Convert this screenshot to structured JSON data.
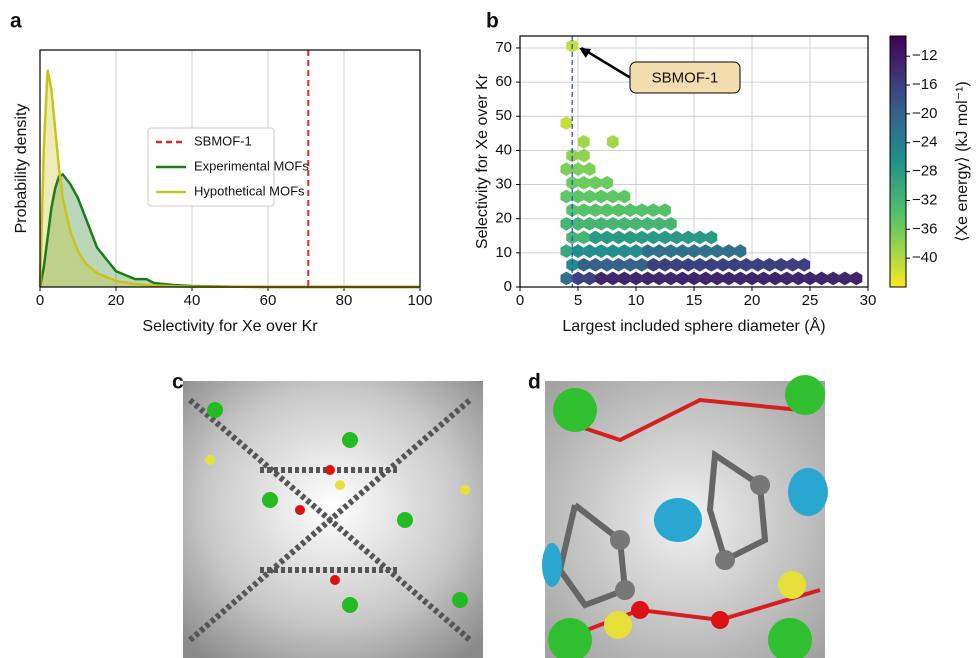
{
  "chart_data": [
    {
      "label": "a",
      "type": "line",
      "xlabel": "Selectivity for Xe over Kr",
      "ylabel": "Probability density",
      "x": [
        0,
        1,
        2,
        3,
        4,
        5,
        6,
        8,
        10,
        12,
        15,
        20,
        25,
        28,
        30,
        35,
        40,
        50,
        60,
        80,
        100
      ],
      "series": [
        {
          "name": "Experimental MOFs",
          "color": "#1c7c1c",
          "values": [
            0,
            0.01,
            0.025,
            0.04,
            0.05,
            0.056,
            0.057,
            0.052,
            0.045,
            0.035,
            0.02,
            0.008,
            0.004,
            0.004,
            0.002,
            0.001,
            0.0005,
            0.0002,
            0,
            0,
            0
          ]
        },
        {
          "name": "Hypothetical MOFs",
          "color": "#c8c41a",
          "values": [
            0,
            0.07,
            0.11,
            0.1,
            0.08,
            0.06,
            0.045,
            0.028,
            0.018,
            0.012,
            0.007,
            0.003,
            0.0015,
            0.001,
            0.0008,
            0.0004,
            0.0002,
            0.0001,
            0,
            0,
            0
          ]
        }
      ],
      "reference_line": {
        "name": "SBMOF-1",
        "x": 70.6,
        "color": "#e8251c"
      },
      "xlim": [
        0,
        100
      ],
      "ylim": [
        0,
        0.12
      ],
      "xticks": [
        0,
        20,
        40,
        60,
        80,
        100
      ],
      "grid": "x",
      "legend": "center"
    },
    {
      "label": "b",
      "type": "hexbin",
      "xlabel": "Largest included sphere diameter (Å)",
      "ylabel": "Selectivity for Xe over Kr",
      "x": [
        4,
        5,
        6,
        7,
        8,
        9,
        10,
        11,
        12,
        13,
        14,
        15,
        16,
        17,
        18,
        19,
        20,
        21,
        22,
        23,
        24,
        25,
        26,
        27,
        28,
        29,
        4.5,
        5.5,
        6.5,
        7.5,
        8.5,
        9.5,
        10.5,
        11.5,
        12.5,
        13.5,
        14.5,
        15.5,
        16.5,
        17.5,
        18.5,
        19.5,
        20.5,
        21.5,
        22.5,
        23.5,
        24.5,
        4,
        5,
        6,
        7,
        8,
        9,
        10,
        11,
        12,
        13,
        14,
        15,
        16,
        17,
        18,
        19,
        4.5,
        5.5,
        6.5,
        7.5,
        8.5,
        9.5,
        10.5,
        11.5,
        12.5,
        13.5,
        14.5,
        15.5,
        16.5,
        4,
        5,
        6,
        7,
        8,
        9,
        10,
        11,
        12,
        13,
        4.5,
        5.5,
        6.5,
        7.5,
        8.5,
        9.5,
        10.5,
        11.5,
        12.5,
        4,
        5,
        6,
        7,
        8,
        9,
        4.5,
        5.5,
        6.5,
        7.5,
        4,
        5,
        6,
        4.5,
        5.5,
        5.5,
        8,
        4,
        4.5
      ],
      "y": [
        2.5,
        2.5,
        2.5,
        2.5,
        2.5,
        2.5,
        2.5,
        2.5,
        2.5,
        2.5,
        2.5,
        2.5,
        2.5,
        2.5,
        2.5,
        2.5,
        2.5,
        2.5,
        2.5,
        2.5,
        2.5,
        2.5,
        2.5,
        2.5,
        2.5,
        2.5,
        6.5,
        6.5,
        6.5,
        6.5,
        6.5,
        6.5,
        6.5,
        6.5,
        6.5,
        6.5,
        6.5,
        6.5,
        6.5,
        6.5,
        6.5,
        6.5,
        6.5,
        6.5,
        6.5,
        6.5,
        6.5,
        10.5,
        10.5,
        10.5,
        10.5,
        10.5,
        10.5,
        10.5,
        10.5,
        10.5,
        10.5,
        10.5,
        10.5,
        10.5,
        10.5,
        10.5,
        10.5,
        14.5,
        14.5,
        14.5,
        14.5,
        14.5,
        14.5,
        14.5,
        14.5,
        14.5,
        14.5,
        14.5,
        14.5,
        14.5,
        18.5,
        18.5,
        18.5,
        18.5,
        18.5,
        18.5,
        18.5,
        18.5,
        18.5,
        18.5,
        22.5,
        22.5,
        22.5,
        22.5,
        22.5,
        22.5,
        22.5,
        22.5,
        22.5,
        26.5,
        26.5,
        26.5,
        26.5,
        26.5,
        26.5,
        30.5,
        30.5,
        30.5,
        30.5,
        34.5,
        34.5,
        34.5,
        38.5,
        38.5,
        42.5,
        42.5,
        48,
        70.6
      ],
      "values": [
        -22,
        -16,
        -16,
        -13,
        -13,
        -13,
        -13,
        -13,
        -13,
        -13,
        -13,
        -13,
        -13,
        -13,
        -13,
        -13,
        -13,
        -13,
        -13,
        -13,
        -13,
        -13,
        -13,
        -13,
        -13,
        -13,
        -26,
        -20,
        -20,
        -20,
        -20,
        -20,
        -20,
        -16,
        -16,
        -16,
        -16,
        -16,
        -16,
        -16,
        -16,
        -16,
        -16,
        -16,
        -16,
        -16,
        -16,
        -30,
        -26,
        -26,
        -26,
        -26,
        -26,
        -26,
        -22,
        -22,
        -22,
        -22,
        -22,
        -22,
        -22,
        -22,
        -22,
        -32,
        -32,
        -28,
        -28,
        -28,
        -28,
        -28,
        -28,
        -28,
        -28,
        -28,
        -28,
        -28,
        -32,
        -32,
        -32,
        -32,
        -32,
        -32,
        -32,
        -32,
        -32,
        -32,
        -34,
        -34,
        -34,
        -34,
        -34,
        -34,
        -34,
        -34,
        -34,
        -35,
        -35,
        -35,
        -35,
        -35,
        -35,
        -36,
        -36,
        -36,
        -36,
        -37,
        -37,
        -37,
        -38,
        -38,
        -39,
        -39,
        -41,
        -41
      ],
      "colormap": "viridis_r",
      "clim": [
        -44,
        -9.2
      ],
      "colorbar_label": "⟨Xe energy⟩ (kJ mol⁻¹)",
      "colorbar_ticks": [
        {
          "value": -12,
          "label": "−12"
        },
        {
          "value": -16,
          "label": "−16"
        },
        {
          "value": -20,
          "label": "−20"
        },
        {
          "value": -24,
          "label": "−24"
        },
        {
          "value": -28,
          "label": "−28"
        },
        {
          "value": -32,
          "label": "−32"
        },
        {
          "value": -36,
          "label": "−36"
        },
        {
          "value": -40,
          "label": "−40"
        }
      ],
      "reference_line": {
        "x": 4.5,
        "color": "#2f4fe0"
      },
      "annotation": {
        "text": "SBMOF-1",
        "x": 4.5,
        "y": 70.6
      },
      "xlim": [
        0,
        30
      ],
      "ylim": [
        0,
        73.5
      ],
      "xticks": [
        0,
        5,
        10,
        15,
        20,
        25,
        30
      ],
      "yticks": [
        0,
        10,
        20,
        30,
        40,
        50,
        60,
        70
      ],
      "grid": true
    }
  ],
  "images": [
    {
      "label": "c"
    },
    {
      "label": "d"
    }
  ]
}
